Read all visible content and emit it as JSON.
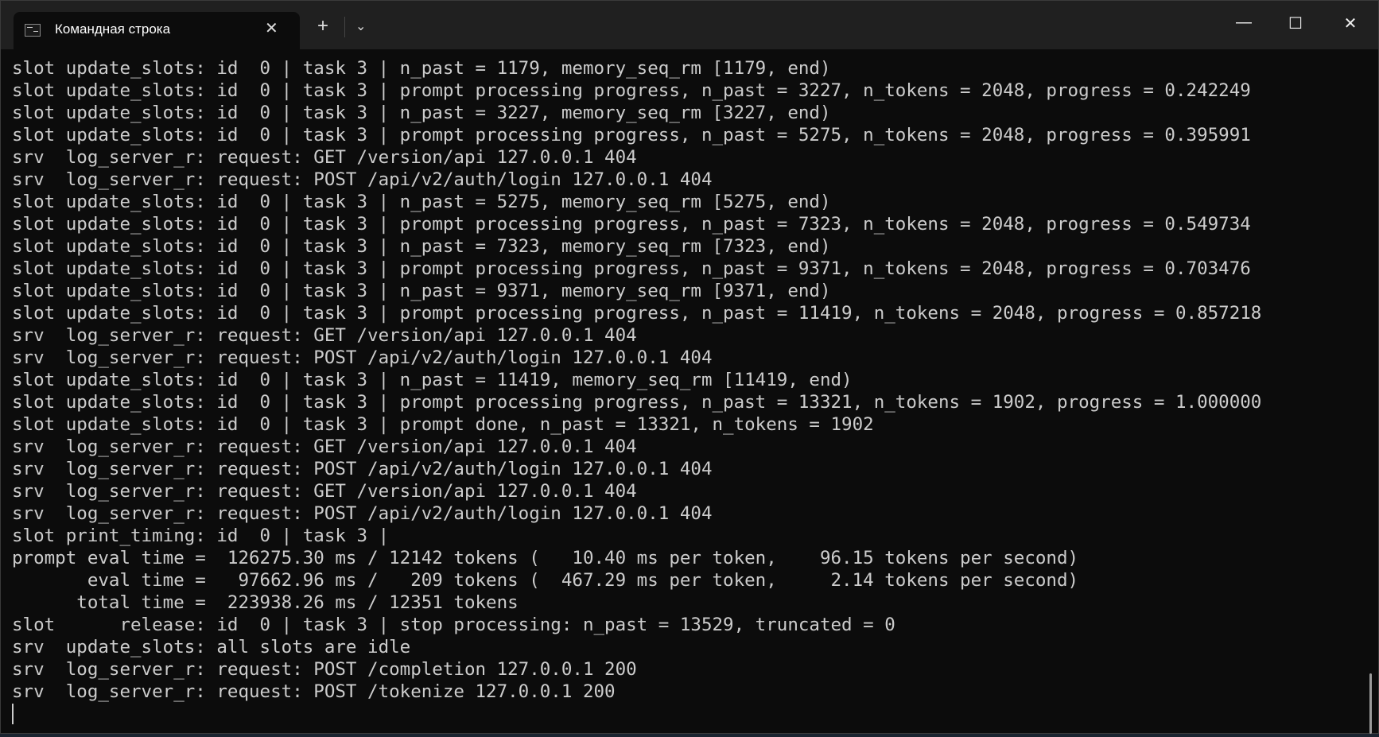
{
  "tab": {
    "title": "Командная строка",
    "icon": "cmd-icon",
    "close": "✕"
  },
  "toolbar": {
    "new_tab": "+",
    "dropdown": "⌄"
  },
  "controls": {
    "minimize": "—",
    "maximize": "☐",
    "close": "✕"
  },
  "lines": [
    "slot update_slots: id  0 | task 3 | n_past = 1179, memory_seq_rm [1179, end)",
    "slot update_slots: id  0 | task 3 | prompt processing progress, n_past = 3227, n_tokens = 2048, progress = 0.242249",
    "slot update_slots: id  0 | task 3 | n_past = 3227, memory_seq_rm [3227, end)",
    "slot update_slots: id  0 | task 3 | prompt processing progress, n_past = 5275, n_tokens = 2048, progress = 0.395991",
    "srv  log_server_r: request: GET /version/api 127.0.0.1 404",
    "srv  log_server_r: request: POST /api/v2/auth/login 127.0.0.1 404",
    "slot update_slots: id  0 | task 3 | n_past = 5275, memory_seq_rm [5275, end)",
    "slot update_slots: id  0 | task 3 | prompt processing progress, n_past = 7323, n_tokens = 2048, progress = 0.549734",
    "slot update_slots: id  0 | task 3 | n_past = 7323, memory_seq_rm [7323, end)",
    "slot update_slots: id  0 | task 3 | prompt processing progress, n_past = 9371, n_tokens = 2048, progress = 0.703476",
    "slot update_slots: id  0 | task 3 | n_past = 9371, memory_seq_rm [9371, end)",
    "slot update_slots: id  0 | task 3 | prompt processing progress, n_past = 11419, n_tokens = 2048, progress = 0.857218",
    "srv  log_server_r: request: GET /version/api 127.0.0.1 404",
    "srv  log_server_r: request: POST /api/v2/auth/login 127.0.0.1 404",
    "slot update_slots: id  0 | task 3 | n_past = 11419, memory_seq_rm [11419, end)",
    "slot update_slots: id  0 | task 3 | prompt processing progress, n_past = 13321, n_tokens = 1902, progress = 1.000000",
    "slot update_slots: id  0 | task 3 | prompt done, n_past = 13321, n_tokens = 1902",
    "srv  log_server_r: request: GET /version/api 127.0.0.1 404",
    "srv  log_server_r: request: POST /api/v2/auth/login 127.0.0.1 404",
    "srv  log_server_r: request: GET /version/api 127.0.0.1 404",
    "srv  log_server_r: request: POST /api/v2/auth/login 127.0.0.1 404",
    "slot print_timing: id  0 | task 3 |",
    "prompt eval time =  126275.30 ms / 12142 tokens (   10.40 ms per token,    96.15 tokens per second)",
    "       eval time =   97662.96 ms /   209 tokens (  467.29 ms per token,     2.14 tokens per second)",
    "      total time =  223938.26 ms / 12351 tokens",
    "slot      release: id  0 | task 3 | stop processing: n_past = 13529, truncated = 0",
    "srv  update_slots: all slots are idle",
    "srv  log_server_r: request: POST /completion 127.0.0.1 200",
    "srv  log_server_r: request: POST /tokenize 127.0.0.1 200"
  ]
}
